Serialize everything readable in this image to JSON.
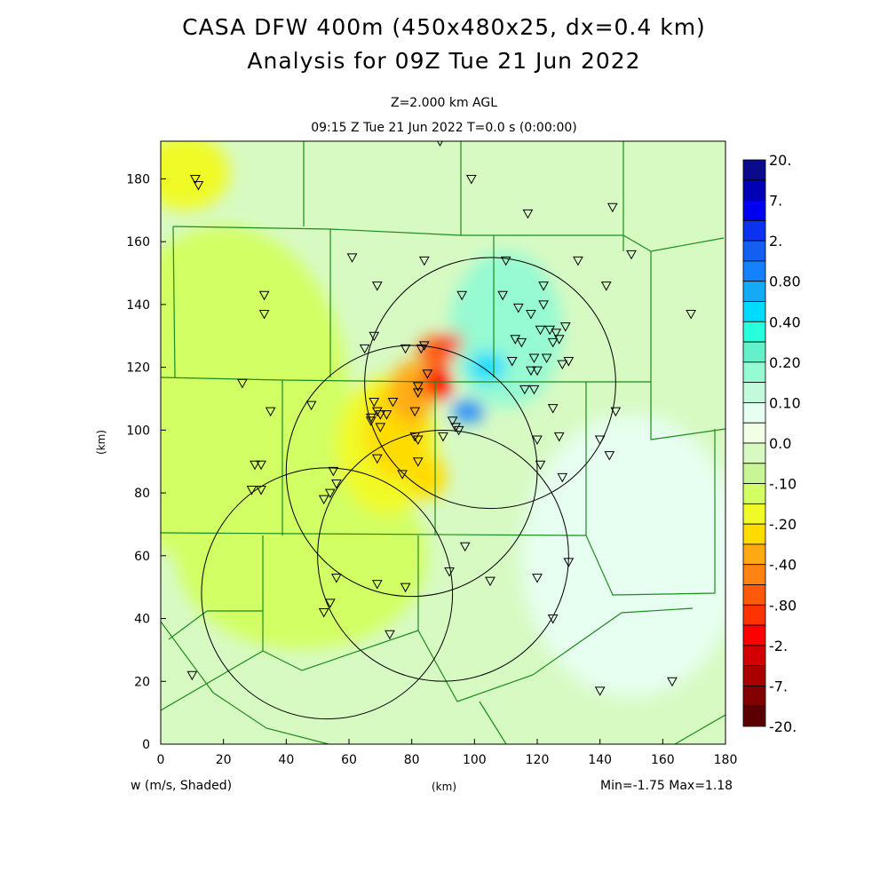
{
  "title_line1": "CASA DFW 400m (450x480x25, dx=0.4 km)",
  "title_line2": "Analysis for 09Z Tue 21 Jun 2022",
  "level": "Z=2.000 km AGL",
  "valid_time": "09:15 Z Tue 21 Jun 2022    T=0.0 s (0:00:00)",
  "field_label": "w (m/s, Shaded)",
  "minmax": "Min=-1.75  Max=1.18",
  "chart_data": {
    "type": "heatmap",
    "title": "CASA DFW 400m (450x480x25, dx=0.4 km) Analysis for 09Z Tue 21 Jun 2022",
    "xlabel": "(km)",
    "ylabel": "(km)",
    "xlim": [
      0,
      180
    ],
    "ylim": [
      0,
      192
    ],
    "xticks": [
      "0",
      "20",
      "40",
      "60",
      "80",
      "100",
      "120",
      "140",
      "160",
      "180"
    ],
    "yticks": [
      "0",
      "20",
      "40",
      "60",
      "80",
      "100",
      "120",
      "140",
      "160",
      "180"
    ],
    "colorbar": {
      "labels": [
        "20.",
        "7.",
        "2.",
        "0.80",
        "0.40",
        "0.20",
        "0.10",
        "0.0",
        "-.10",
        "-.20",
        "-.40",
        "-.80",
        "-2.",
        "-7.",
        "-20."
      ],
      "colors": [
        "#0a0a8c",
        "#0000b4",
        "#0000f0",
        "#0a32f0",
        "#145ff0",
        "#1482ff",
        "#14aaf5",
        "#00dcff",
        "#28ffdc",
        "#64f0c8",
        "#96fad2",
        "#c3fadc",
        "#e6fff0",
        "#f0ffe6",
        "#d7fac3",
        "#c8f596",
        "#d2ff64",
        "#f0fa28",
        "#ffdc00",
        "#ffaa14",
        "#ff8214",
        "#ff5a0a",
        "#ff3200",
        "#ff0000",
        "#d20000",
        "#aa0000",
        "#820000",
        "#5a0000"
      ]
    },
    "field_min": -1.75,
    "field_max": 1.18,
    "features": [
      {
        "x": 20,
        "y": 110,
        "rx": 40,
        "ry": 55,
        "value": -0.12
      },
      {
        "x": 45,
        "y": 60,
        "rx": 40,
        "ry": 30,
        "value": -0.12
      },
      {
        "x": 8,
        "y": 182,
        "rx": 14,
        "ry": 12,
        "value": -0.18
      },
      {
        "x": 72,
        "y": 95,
        "rx": 16,
        "ry": 22,
        "value": -0.15
      },
      {
        "x": 75,
        "y": 100,
        "rx": 10,
        "ry": 16,
        "value": -0.2
      },
      {
        "x": 80,
        "y": 112,
        "rx": 7,
        "ry": 10,
        "value": -0.35
      },
      {
        "x": 85,
        "y": 85,
        "rx": 6,
        "ry": 7,
        "value": -0.2
      },
      {
        "x": 150,
        "y": 60,
        "rx": 35,
        "ry": 45,
        "value": 0.05
      },
      {
        "x": 110,
        "y": 132,
        "rx": 18,
        "ry": 25,
        "value": 0.15
      },
      {
        "x": 104,
        "y": 120,
        "rx": 6,
        "ry": 5,
        "value": 0.4
      },
      {
        "x": 88,
        "y": 125,
        "rx": 6,
        "ry": 5,
        "value": -0.6
      },
      {
        "x": 88,
        "y": 115,
        "rx": 5,
        "ry": 5,
        "value": -1.2
      },
      {
        "x": 93,
        "y": 128,
        "rx": 3,
        "ry": 3,
        "value": -1.0
      },
      {
        "x": 98,
        "y": 106,
        "rx": 5,
        "ry": 3.5,
        "value": 0.9
      }
    ],
    "radar_rings_km": [
      {
        "x": 105,
        "y": 115,
        "r": 40
      },
      {
        "x": 80,
        "y": 87,
        "r": 40
      },
      {
        "x": 90,
        "y": 60,
        "r": 40
      },
      {
        "x": 53,
        "y": 48,
        "r": 40
      }
    ],
    "stations_km": [
      [
        11,
        180
      ],
      [
        12,
        178
      ],
      [
        89,
        192
      ],
      [
        99,
        180
      ],
      [
        117,
        169
      ],
      [
        144,
        171
      ],
      [
        150,
        156
      ],
      [
        61,
        155
      ],
      [
        84,
        154
      ],
      [
        69,
        146
      ],
      [
        33,
        143
      ],
      [
        33,
        137
      ],
      [
        110,
        154
      ],
      [
        122,
        146
      ],
      [
        133,
        154
      ],
      [
        142,
        146
      ],
      [
        169,
        137
      ],
      [
        96,
        143
      ],
      [
        109,
        143
      ],
      [
        114,
        139
      ],
      [
        118,
        137
      ],
      [
        122,
        140
      ],
      [
        121,
        132
      ],
      [
        124,
        132
      ],
      [
        125,
        128
      ],
      [
        127,
        129
      ],
      [
        129,
        133
      ],
      [
        126,
        131
      ],
      [
        113,
        129
      ],
      [
        115,
        128
      ],
      [
        112,
        122
      ],
      [
        119,
        123
      ],
      [
        120,
        119
      ],
      [
        118,
        119
      ],
      [
        123,
        123
      ],
      [
        128,
        121
      ],
      [
        130,
        122
      ],
      [
        65,
        126
      ],
      [
        68,
        130
      ],
      [
        78,
        126
      ],
      [
        84,
        127
      ],
      [
        83,
        126
      ],
      [
        85,
        118
      ],
      [
        82,
        114
      ],
      [
        82,
        112
      ],
      [
        74,
        109
      ],
      [
        81,
        106
      ],
      [
        68,
        109
      ],
      [
        69,
        106
      ],
      [
        70,
        105
      ],
      [
        72,
        105
      ],
      [
        67,
        104
      ],
      [
        70,
        101
      ],
      [
        67,
        103
      ],
      [
        93,
        103
      ],
      [
        94,
        101
      ],
      [
        95,
        100
      ],
      [
        90,
        98
      ],
      [
        81,
        98
      ],
      [
        82,
        97
      ],
      [
        116,
        113
      ],
      [
        119,
        113
      ],
      [
        125,
        107
      ],
      [
        127,
        98
      ],
      [
        140,
        97
      ],
      [
        143,
        92
      ],
      [
        145,
        106
      ],
      [
        120,
        97
      ],
      [
        121,
        89
      ],
      [
        128,
        85
      ],
      [
        48,
        108
      ],
      [
        35,
        106
      ],
      [
        26,
        115
      ],
      [
        30,
        89
      ],
      [
        32,
        89
      ],
      [
        29,
        81
      ],
      [
        32,
        81
      ],
      [
        55,
        87
      ],
      [
        56,
        83
      ],
      [
        54,
        80
      ],
      [
        52,
        78
      ],
      [
        69,
        91
      ],
      [
        77,
        86
      ],
      [
        82,
        90
      ],
      [
        56,
        53
      ],
      [
        69,
        51
      ],
      [
        78,
        50
      ],
      [
        92,
        55
      ],
      [
        97,
        63
      ],
      [
        105,
        52
      ],
      [
        120,
        53
      ],
      [
        130,
        58
      ],
      [
        125,
        40
      ],
      [
        52,
        42
      ],
      [
        54,
        45
      ],
      [
        73,
        35
      ],
      [
        10,
        22
      ],
      [
        140,
        17
      ],
      [
        163,
        20
      ]
    ]
  }
}
